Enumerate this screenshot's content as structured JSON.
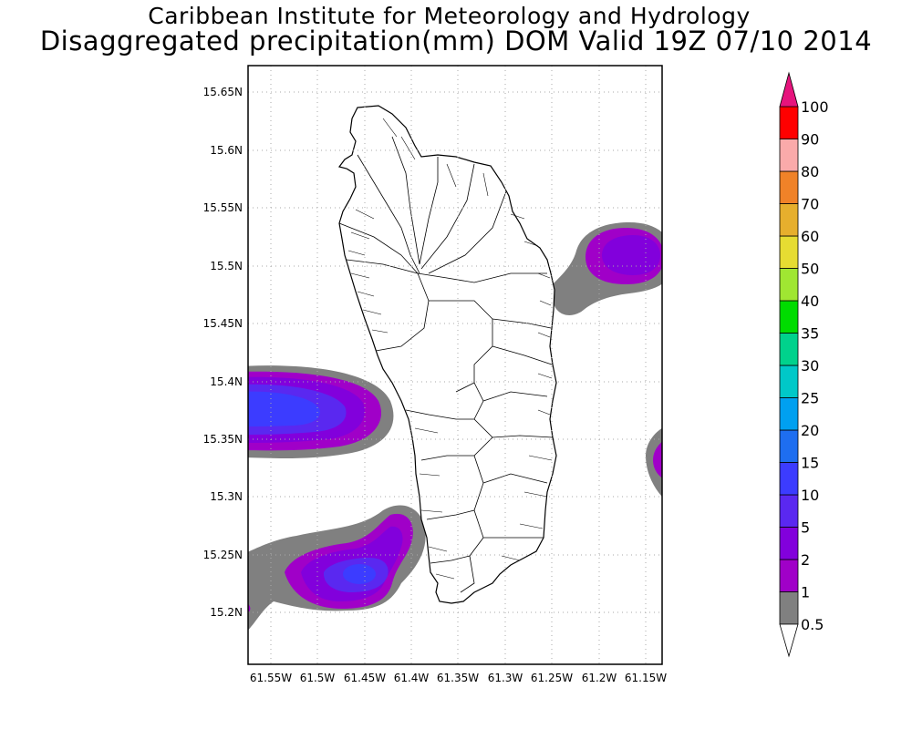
{
  "header": {
    "institute": "Caribbean Institute for Meteorology and Hydrology",
    "title": "Disaggregated precipitation(mm) DOM Valid 19Z 07/10 2014"
  },
  "map": {
    "lat_labels": [
      "15.65N",
      "15.6N",
      "15.55N",
      "15.5N",
      "15.45N",
      "15.4N",
      "15.35N",
      "15.3N",
      "15.25N",
      "15.2N"
    ],
    "lon_labels": [
      "61.55W",
      "61.5W",
      "61.45W",
      "61.4W",
      "61.35W",
      "61.3W",
      "61.25W",
      "61.2W",
      "61.15W"
    ],
    "grid": true,
    "region": "Dominica"
  },
  "colorbar": {
    "levels": [
      "0.5",
      "1",
      "2",
      "5",
      "10",
      "15",
      "20",
      "25",
      "30",
      "35",
      "40",
      "50",
      "60",
      "70",
      "80",
      "90",
      "100"
    ],
    "colors": [
      "#808080",
      "#a000c8",
      "#8200dc",
      "#5a28f0",
      "#3c3cff",
      "#1e6ef0",
      "#00a0f0",
      "#00c8c8",
      "#00d28c",
      "#00dc00",
      "#a0e632",
      "#e6dc32",
      "#e6af2d",
      "#f08228",
      "#faaaaa",
      "#ff0000",
      "#f03c50"
    ],
    "top_arrow_color": "#e6147d",
    "bottom_arrow_color": "#ffffff"
  }
}
